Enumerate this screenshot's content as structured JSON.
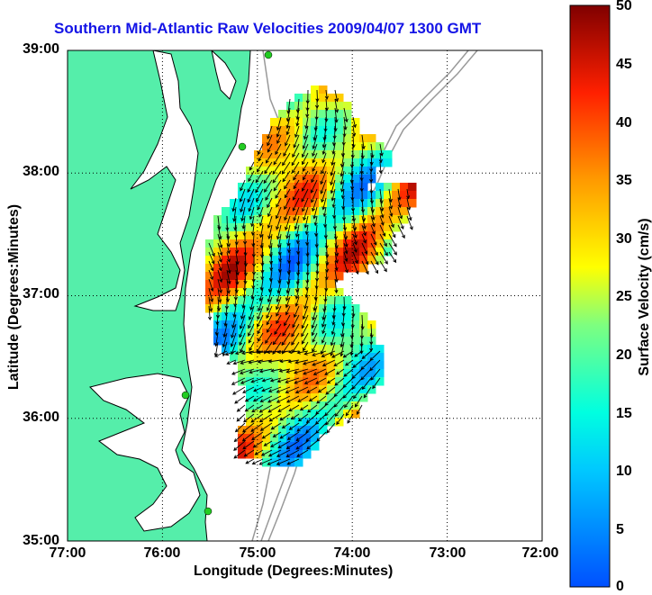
{
  "title": "Southern Mid-Atlantic Raw Velocities 2009/04/07 1300 GMT",
  "xlabel": "Longitude (Degrees:Minutes)",
  "ylabel": "Latitude (Degrees:Minutes)",
  "colorbar_label": "Surface Velocity (cm/s)",
  "x_ticks": [
    "77:00",
    "76:00",
    "75:00",
    "74:00",
    "73:00",
    "72:00"
  ],
  "y_ticks": [
    "39:00",
    "38:00",
    "37:00",
    "36:00",
    "35:00"
  ],
  "colorbar_ticks": [
    "50",
    "45",
    "40",
    "35",
    "30",
    "25",
    "20",
    "15",
    "10",
    "5",
    "0"
  ],
  "colors": {
    "land": "#55eeaa",
    "coast_line": "#000000",
    "bathymetry": "#999999",
    "station_marker": "#22cc22",
    "title": "#1414e6"
  },
  "map_extent": {
    "lon_min": -77,
    "lon_max": -72,
    "lat_min": 35,
    "lat_max": 39
  },
  "colorbar_range": [
    0,
    50
  ],
  "grid": "dotted"
}
